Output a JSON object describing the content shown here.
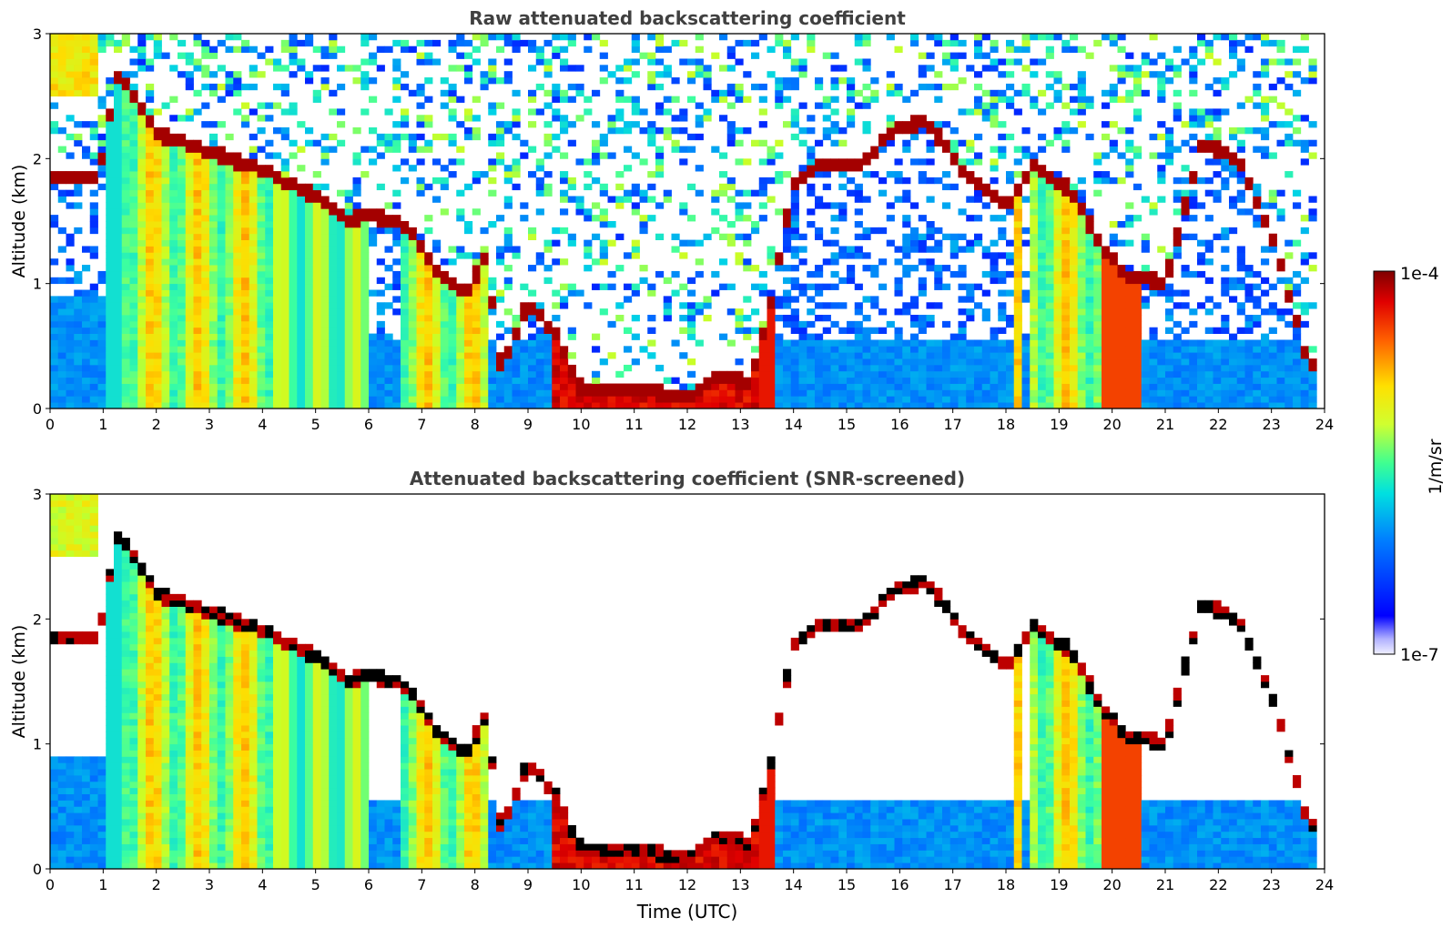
{
  "chart_data": [
    {
      "type": "heatmap",
      "title": "Raw attenuated backscattering coefficient",
      "xlabel": "",
      "ylabel": "Altitude (km)",
      "xlim": [
        0,
        24
      ],
      "ylim": [
        0,
        3
      ],
      "xticks": [
        "0",
        "1",
        "2",
        "3",
        "4",
        "5",
        "6",
        "7",
        "8",
        "9",
        "10",
        "11",
        "12",
        "13",
        "14",
        "15",
        "16",
        "17",
        "18",
        "19",
        "20",
        "21",
        "22",
        "23",
        "24"
      ],
      "yticks": [
        "0",
        "1",
        "2",
        "3"
      ],
      "screened": false,
      "layers": [
        {
          "name": "cloud-top",
          "points": [
            [
              0.9,
              1.85
            ],
            [
              1.3,
              2.7
            ],
            [
              2.0,
              2.2
            ],
            [
              3.0,
              2.05
            ],
            [
              4.0,
              1.9
            ],
            [
              5.0,
              1.7
            ],
            [
              5.6,
              1.5
            ],
            [
              6.0,
              1.55
            ],
            [
              6.7,
              1.45
            ],
            [
              7.3,
              1.1
            ],
            [
              7.8,
              0.9
            ],
            [
              8.2,
              1.2
            ],
            [
              8.5,
              0.3
            ],
            [
              9.0,
              0.85
            ],
            [
              9.5,
              0.6
            ],
            [
              10.0,
              0.15
            ],
            [
              11.0,
              0.15
            ],
            [
              12.0,
              0.08
            ],
            [
              12.5,
              0.25
            ],
            [
              13.2,
              0.2
            ],
            [
              13.6,
              0.9
            ],
            [
              14.0,
              1.8
            ],
            [
              14.5,
              1.95
            ],
            [
              15.3,
              1.95
            ],
            [
              15.8,
              2.2
            ],
            [
              16.5,
              2.3
            ],
            [
              17.2,
              1.9
            ],
            [
              18.0,
              1.6
            ],
            [
              18.5,
              1.95
            ],
            [
              19.2,
              1.75
            ],
            [
              19.8,
              1.3
            ],
            [
              20.3,
              1.05
            ],
            [
              21.0,
              1.0
            ],
            [
              21.7,
              2.15
            ],
            [
              22.4,
              1.95
            ],
            [
              23.0,
              1.4
            ],
            [
              23.7,
              0.35
            ]
          ]
        }
      ],
      "colorbar": {
        "min_label": "1e-7",
        "max_label": "1e-4",
        "label": "1/m/sr",
        "scale": "log"
      },
      "colors": {
        "high": "#7f0000",
        "mid": "#ffff00",
        "low": "#0000ff",
        "background": "#ffffff"
      }
    },
    {
      "type": "heatmap",
      "title": "Attenuated backscattering coefficient (SNR-screened)",
      "xlabel": "Time (UTC)",
      "ylabel": "Altitude (km)",
      "xlim": [
        0,
        24
      ],
      "ylim": [
        0,
        3
      ],
      "xticks": [
        "0",
        "1",
        "2",
        "3",
        "4",
        "5",
        "6",
        "7",
        "8",
        "9",
        "10",
        "11",
        "12",
        "13",
        "14",
        "15",
        "16",
        "17",
        "18",
        "19",
        "20",
        "21",
        "22",
        "23",
        "24"
      ],
      "yticks": [
        "0",
        "1",
        "2",
        "3"
      ],
      "screened": true,
      "colorbar": {
        "min_label": "1e-7",
        "max_label": "1e-4",
        "label": "1/m/sr",
        "scale": "log"
      }
    }
  ]
}
